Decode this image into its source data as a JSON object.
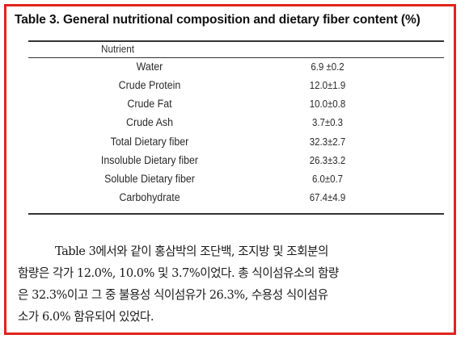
{
  "table": {
    "title": "Table 3. General nutritional composition and dietary fiber content (%)",
    "header": "Nutrient",
    "rows": [
      {
        "nutrient": "Water",
        "value": "6.9 ±0.2"
      },
      {
        "nutrient": "Crude Protein",
        "value": "12.0±1.9"
      },
      {
        "nutrient": "Crude Fat",
        "value": "10.0±0.8"
      },
      {
        "nutrient": "Crude Ash",
        "value": "3.7±0.3"
      },
      {
        "nutrient": "Total Dietary fiber",
        "value": "32.3±2.7"
      },
      {
        "nutrient": "Insoluble Dietary fiber",
        "value": "26.3±3.2"
      },
      {
        "nutrient": "Soluble Dietary fiber",
        "value": "6.0±0.7"
      },
      {
        "nutrient": "Carbohydrate",
        "value": "67.4±4.9"
      }
    ]
  },
  "paragraph": {
    "lines": [
      "Table 3에서와 같이 홍삼박의 조단백, 조지방 및 조회분의",
      "함량은 각가 12.0%, 10.0% 및 3.7%이었다. 총 식이섬유소의 함량",
      "은 32.3%이고 그 중 불용성 식이섬유가 26.3%, 수용성 식이섬유",
      "소가 6.0% 함유되어 있었다."
    ]
  },
  "colors": {
    "frame_border": "#e2231a",
    "text": "#1a1a1a"
  }
}
